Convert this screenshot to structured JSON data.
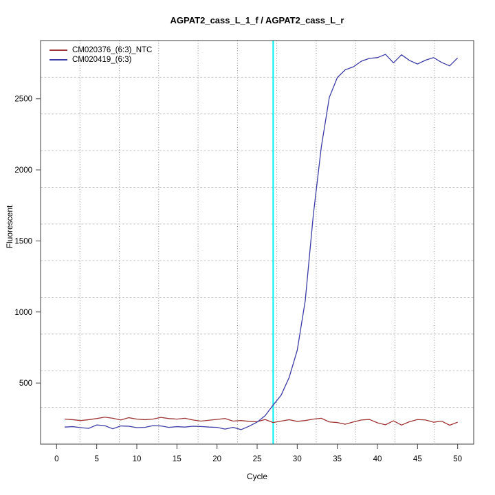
{
  "figure": {
    "background": "#ffffff"
  },
  "chart_data": {
    "type": "line",
    "title": "AGPAT2_cass_L_1_f / AGPAT2_cass_L_r",
    "xlabel": "Cycle",
    "ylabel": "Fluorescent",
    "xlim": [
      -2,
      52
    ],
    "ylim": [
      70,
      2910
    ],
    "x_ticks": [
      0,
      5,
      10,
      15,
      20,
      25,
      30,
      35,
      40,
      45,
      50
    ],
    "y_ticks": [
      500,
      1000,
      1500,
      2000,
      2500
    ],
    "grid": {
      "divisions_x": 11,
      "divisions_y": 11,
      "horizontal_style": "dashed",
      "vertical_style": "dotted",
      "horizontal_color": "#c3c3c3",
      "vertical_color": "#8a8a8a"
    },
    "threshold_line": {
      "x": 27,
      "color": "#00EEEE"
    },
    "x_start": 1,
    "axis_color": "#3c3c3c",
    "legend_position": "top-left",
    "series": [
      {
        "name": "CM020376_(6:3)_NTC",
        "color": "#9E3434",
        "values": [
          246,
          242,
          236,
          242,
          250,
          260,
          252,
          240,
          256,
          246,
          242,
          246,
          258,
          250,
          246,
          252,
          240,
          232,
          238,
          244,
          250,
          232,
          236,
          230,
          228,
          243,
          222,
          232,
          242,
          230,
          236,
          246,
          252,
          226,
          222,
          210,
          226,
          240,
          244,
          220,
          206,
          234,
          204,
          228,
          243,
          240,
          224,
          232,
          203,
          224
        ]
      },
      {
        "name": "CM020419_(6:3)",
        "color": "#3B3BA5",
        "values": [
          190,
          193,
          186,
          181,
          205,
          200,
          178,
          198,
          196,
          186,
          188,
          200,
          198,
          188,
          193,
          190,
          196,
          194,
          190,
          188,
          176,
          188,
          172,
          196,
          225,
          270,
          345,
          415,
          540,
          730,
          1080,
          1680,
          2160,
          2510,
          2650,
          2705,
          2725,
          2765,
          2785,
          2790,
          2813,
          2753,
          2810,
          2770,
          2745,
          2772,
          2790,
          2756,
          2732,
          2788
        ]
      }
    ]
  }
}
